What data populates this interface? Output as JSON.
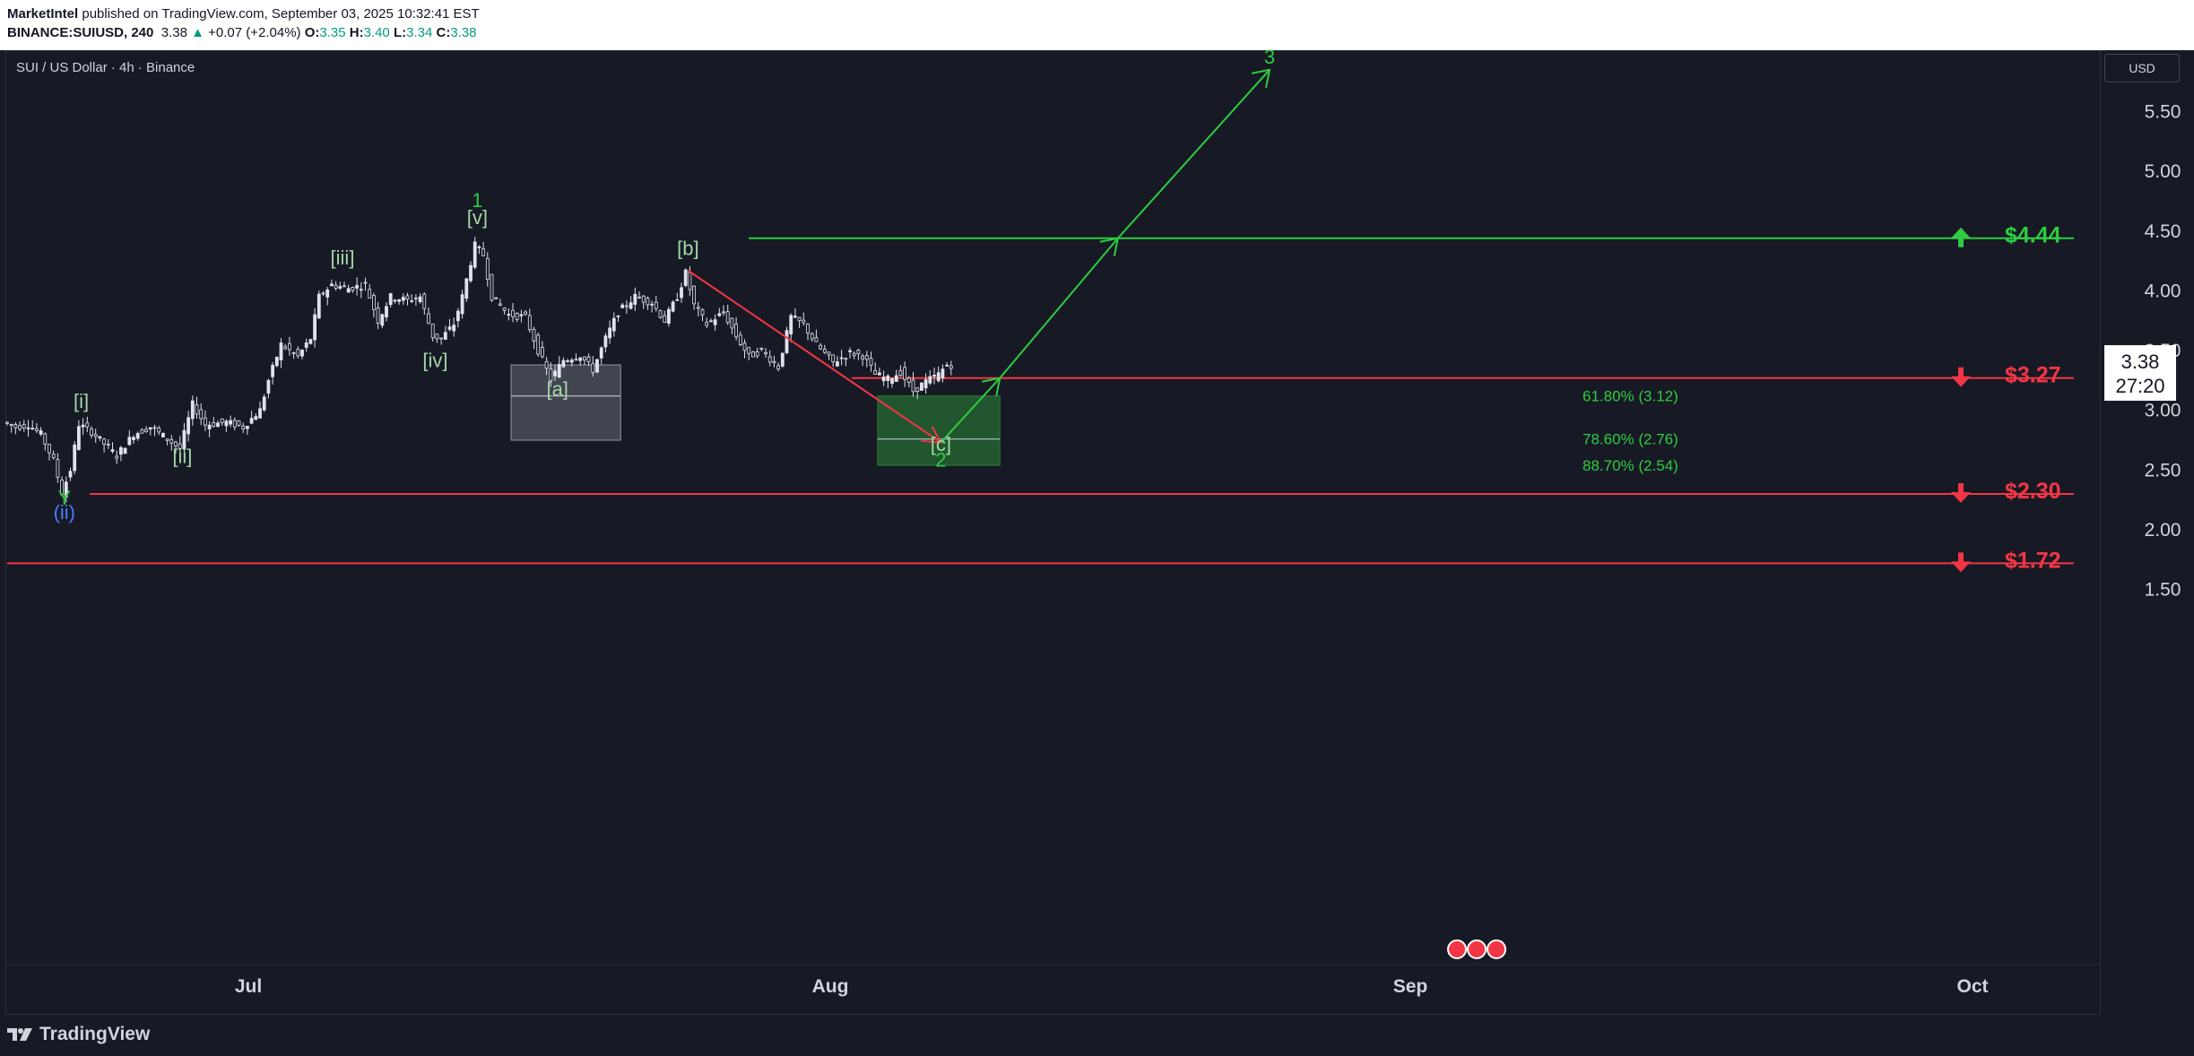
{
  "header": {
    "publisher": "MarketIntel",
    "published_text": "published on TradingView.com, September 03, 2025 10:32:41 EST",
    "symbol": "BINANCE:SUIUSD, 240",
    "last": "3.38",
    "change": "+0.07 (+2.04%)",
    "o_label": "O:",
    "o_value": "3.35",
    "h_label": "H:",
    "h_value": "3.40",
    "l_label": "L:",
    "l_value": "3.34",
    "c_label": "C:",
    "c_value": "3.38"
  },
  "chart_title": "SUI / US Dollar · 4h · Binance",
  "currency_label": "USD",
  "brand": "TradingView",
  "price_tag": {
    "price": "3.38",
    "countdown": "27:20"
  },
  "colors": {
    "background": "#171a25",
    "green": "#2ecc40",
    "red": "#f23645",
    "wave_label": "#a5d6a7",
    "blue_label": "#4a7cff",
    "candle": "#e0e3eb"
  },
  "chart_data": {
    "type": "candlestick",
    "series_description": "SUI/USD 4h price, wave annotations",
    "ylim": [
      1.35,
      6.0
    ],
    "y_ticks": [
      "1.50",
      "2.00",
      "2.50",
      "3.00",
      "3.50",
      "4.00",
      "4.50",
      "5.00",
      "5.50"
    ],
    "x_ticks": [
      "Jul",
      "Aug",
      "Sep",
      "Oct"
    ],
    "price_path": [
      {
        "t": 0,
        "p": 2.9
      },
      {
        "t": 3,
        "p": 2.86
      },
      {
        "t": 6,
        "p": 2.88
      },
      {
        "t": 9,
        "p": 2.8
      },
      {
        "t": 12,
        "p": 2.58
      },
      {
        "t": 14,
        "p": 2.31
      },
      {
        "t": 16,
        "p": 2.5
      },
      {
        "t": 18,
        "p": 2.88
      },
      {
        "t": 21,
        "p": 2.82
      },
      {
        "t": 24,
        "p": 2.72
      },
      {
        "t": 27,
        "p": 2.62
      },
      {
        "t": 31,
        "p": 2.8
      },
      {
        "t": 35,
        "p": 2.86
      },
      {
        "t": 39,
        "p": 2.76
      },
      {
        "t": 42,
        "p": 2.68
      },
      {
        "t": 45,
        "p": 3.05
      },
      {
        "t": 48,
        "p": 2.88
      },
      {
        "t": 53,
        "p": 2.9
      },
      {
        "t": 57,
        "p": 2.86
      },
      {
        "t": 61,
        "p": 3.0
      },
      {
        "t": 63,
        "p": 3.25
      },
      {
        "t": 66,
        "p": 3.55
      },
      {
        "t": 70,
        "p": 3.45
      },
      {
        "t": 73,
        "p": 3.6
      },
      {
        "t": 75,
        "p": 3.95
      },
      {
        "t": 78,
        "p": 4.05
      },
      {
        "t": 82,
        "p": 4.02
      },
      {
        "t": 86,
        "p": 4.05
      },
      {
        "t": 89,
        "p": 3.75
      },
      {
        "t": 92,
        "p": 3.95
      },
      {
        "t": 96,
        "p": 3.92
      },
      {
        "t": 99,
        "p": 3.95
      },
      {
        "t": 102,
        "p": 3.62
      },
      {
        "t": 104,
        "p": 3.6
      },
      {
        "t": 107,
        "p": 3.72
      },
      {
        "t": 109,
        "p": 3.95
      },
      {
        "t": 112,
        "p": 4.38
      },
      {
        "t": 114,
        "p": 4.3
      },
      {
        "t": 116,
        "p": 3.95
      },
      {
        "t": 120,
        "p": 3.8
      },
      {
        "t": 124,
        "p": 3.78
      },
      {
        "t": 127,
        "p": 3.5
      },
      {
        "t": 130,
        "p": 3.26
      },
      {
        "t": 133,
        "p": 3.42
      },
      {
        "t": 137,
        "p": 3.46
      },
      {
        "t": 140,
        "p": 3.34
      },
      {
        "t": 143,
        "p": 3.6
      },
      {
        "t": 146,
        "p": 3.82
      },
      {
        "t": 150,
        "p": 3.95
      },
      {
        "t": 154,
        "p": 3.9
      },
      {
        "t": 157,
        "p": 3.75
      },
      {
        "t": 160,
        "p": 3.95
      },
      {
        "t": 162,
        "p": 4.15
      },
      {
        "t": 164,
        "p": 3.88
      },
      {
        "t": 167,
        "p": 3.72
      },
      {
        "t": 171,
        "p": 3.82
      },
      {
        "t": 174,
        "p": 3.62
      },
      {
        "t": 177,
        "p": 3.45
      },
      {
        "t": 180,
        "p": 3.5
      },
      {
        "t": 184,
        "p": 3.36
      },
      {
        "t": 187,
        "p": 3.78
      },
      {
        "t": 190,
        "p": 3.72
      },
      {
        "t": 193,
        "p": 3.55
      },
      {
        "t": 197,
        "p": 3.4
      },
      {
        "t": 201,
        "p": 3.48
      },
      {
        "t": 204,
        "p": 3.46
      },
      {
        "t": 207,
        "p": 3.3
      },
      {
        "t": 210,
        "p": 3.26
      },
      {
        "t": 213,
        "p": 3.32
      },
      {
        "t": 216,
        "p": 3.16
      },
      {
        "t": 219,
        "p": 3.24
      },
      {
        "t": 222,
        "p": 3.3
      },
      {
        "t": 224,
        "p": 3.38
      }
    ],
    "horizontal_levels": [
      {
        "price": 4.44,
        "color": "green",
        "label": "$4.44",
        "arrow": "up"
      },
      {
        "price": 3.27,
        "color": "red",
        "label": "$3.27",
        "arrow": "down"
      },
      {
        "price": 2.3,
        "color": "red",
        "label": "$2.30",
        "arrow": "down"
      },
      {
        "price": 1.72,
        "color": "red",
        "label": "$1.72",
        "arrow": "down"
      }
    ],
    "fib_levels": [
      {
        "price": 3.12,
        "label": "61.80% (3.12)"
      },
      {
        "price": 2.76,
        "label": "78.60% (2.76)"
      },
      {
        "price": 2.54,
        "label": "88.70% (2.54)"
      }
    ],
    "wave_labels": [
      {
        "text": "[i]",
        "t": 18,
        "p": 3.02,
        "color": "wave"
      },
      {
        "text": "[ii]",
        "t": 42,
        "p": 2.56,
        "color": "wave"
      },
      {
        "text": "[iii]",
        "t": 80,
        "p": 4.22,
        "color": "wave"
      },
      {
        "text": "[iv]",
        "t": 102,
        "p": 3.36,
        "color": "wave"
      },
      {
        "text": "[v]",
        "t": 112,
        "p": 4.56,
        "color": "wave"
      },
      {
        "text": "1",
        "t": 112,
        "p": 4.7,
        "color": "green"
      },
      {
        "text": "[a]",
        "t": 131,
        "p": 3.12,
        "color": "wave"
      },
      {
        "text": "[b]",
        "t": 162,
        "p": 4.3,
        "color": "wave"
      },
      {
        "text": "[c]",
        "t": 222,
        "p": 2.66,
        "color": "wave"
      },
      {
        "text": "2",
        "t": 222,
        "p": 2.53,
        "color": "green"
      },
      {
        "text": "Y",
        "t": 14,
        "p": 2.21,
        "color": "green"
      },
      {
        "text": "(ii)",
        "t": 14,
        "p": 2.09,
        "color": "blue"
      },
      {
        "text": "3",
        "t": 300,
        "p": 5.9,
        "color": "green"
      }
    ],
    "projection": {
      "red_path": [
        {
          "t": 162,
          "p": 4.17
        },
        {
          "t": 222,
          "p": 2.73
        }
      ],
      "green_path": [
        {
          "t": 222,
          "p": 2.73
        },
        {
          "t": 236,
          "p": 3.27
        },
        {
          "t": 264,
          "p": 4.44
        },
        {
          "t": 300,
          "p": 5.85
        }
      ]
    },
    "zones": [
      {
        "name": "wave-a-zone",
        "t0": 120,
        "t1": 146,
        "p0": 2.75,
        "p1": 3.38,
        "mid": 3.12,
        "color": "gray"
      },
      {
        "name": "fib-target-zone",
        "t0": 207,
        "t1": 236,
        "p0": 2.54,
        "p1": 3.12,
        "mid": 2.76,
        "color": "green"
      }
    ]
  }
}
